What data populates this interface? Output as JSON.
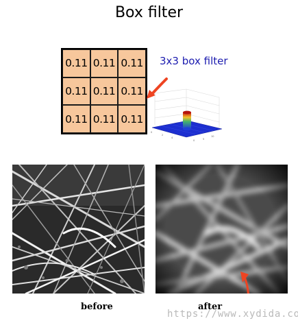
{
  "title": "Box filter",
  "kernel": {
    "rows": [
      [
        "0.11",
        "0.11",
        "0.11"
      ],
      [
        "0.11",
        "0.11",
        "0.11"
      ],
      [
        "0.11",
        "0.11",
        "0.11"
      ]
    ]
  },
  "filter_label": "3x3 box filter",
  "images": {
    "before_caption": "before",
    "after_caption": "after"
  },
  "watermark": "https://www.xydida.com",
  "colors": {
    "kernel_fill": "#f7c79c",
    "label_blue": "#1b1baf",
    "arrow_red": "#ee4422"
  }
}
